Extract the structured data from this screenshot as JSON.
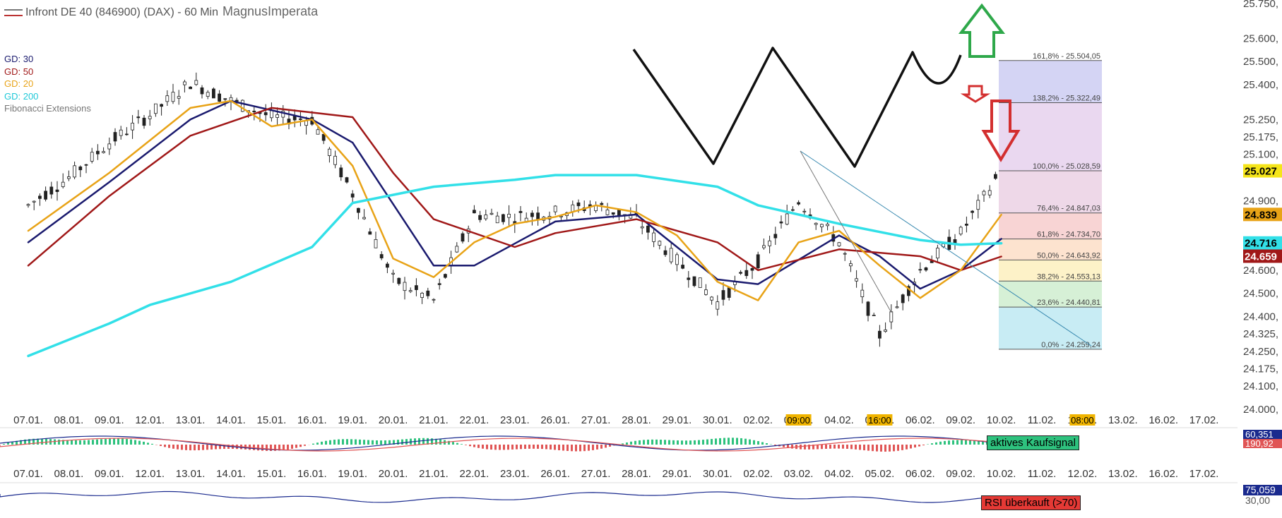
{
  "header": {
    "title": "Infront DE 40 (846900) (DAX) - 60 Min",
    "author": "MagnusImperata"
  },
  "legend": {
    "ma": [
      {
        "label": "GD: 30",
        "color": "#1a1a6e"
      },
      {
        "label": "GD: 50",
        "color": "#a01818"
      },
      {
        "label": "GD: 20",
        "color": "#e8a317"
      },
      {
        "label": "GD: 200",
        "color": "#32e0e8"
      }
    ],
    "fib_name": "Fibonacci Extensions"
  },
  "chart_data": {
    "type": "line",
    "title": "Infront DE 40 (846900) (DAX) - 60 Min",
    "ylim": [
      24000,
      25750
    ],
    "y_ticks": [
      "24.000,",
      "24.100,",
      "24.175,",
      "24.250,",
      "24.325,",
      "24.400,",
      "24.500,",
      "24.600,",
      "24.900,",
      "25.100,",
      "25.175,",
      "25.250,",
      "25.400,",
      "25.500,",
      "25.600,",
      "25.750,"
    ],
    "x_ticks": [
      "07.01.",
      "08.01.",
      "09.01.",
      "12.01.",
      "13.01.",
      "14.01.",
      "15.01.",
      "16.01.",
      "19.01.",
      "20.01.",
      "21.01.",
      "22.01.",
      "23.01.",
      "26.01.",
      "27.01.",
      "28.01.",
      "29.01.",
      "30.01.",
      "02.02.",
      "03.02.",
      "04.02.",
      "05.02.",
      "06.02.",
      "09.02.",
      "10.02.",
      "11.02.",
      "12.02.",
      "13.02.",
      "16.02.",
      "17.02."
    ],
    "time_badges": [
      "09:00",
      "16:00",
      "08:00"
    ],
    "price_series": [
      {
        "x": "07.01.",
        "y": 24880
      },
      {
        "x": "08.01.",
        "y": 25000
      },
      {
        "x": "09.01.",
        "y": 25150
      },
      {
        "x": "12.01.",
        "y": 25270
      },
      {
        "x": "13.01.",
        "y": 25410
      },
      {
        "x": "14.01.",
        "y": 25330
      },
      {
        "x": "15.01.",
        "y": 25260
      },
      {
        "x": "16.01.",
        "y": 25250
      },
      {
        "x": "19.01.",
        "y": 24930
      },
      {
        "x": "20.01.",
        "y": 24560
      },
      {
        "x": "21.01.",
        "y": 24470
      },
      {
        "x": "22.01.",
        "y": 24840
      },
      {
        "x": "23.01.",
        "y": 24830
      },
      {
        "x": "26.01.",
        "y": 24850
      },
      {
        "x": "27.01.",
        "y": 24880
      },
      {
        "x": "28.01.",
        "y": 24820
      },
      {
        "x": "29.01.",
        "y": 24640
      },
      {
        "x": "30.01.",
        "y": 24460
      },
      {
        "x": "02.02.",
        "y": 24640
      },
      {
        "x": "03.02.",
        "y": 24900
      },
      {
        "x": "04.02.",
        "y": 24720
      },
      {
        "x": "05.02.",
        "y": 24320
      },
      {
        "x": "06.02.",
        "y": 24600
      },
      {
        "x": "09.02.",
        "y": 24760
      },
      {
        "x": "10.02.",
        "y": 25030
      }
    ],
    "series": [
      {
        "name": "GD: 30",
        "color": "#1a1a6e",
        "values": [
          {
            "x": "07.01.",
            "y": 24720
          },
          {
            "x": "09.01.",
            "y": 24980
          },
          {
            "x": "13.01.",
            "y": 25250
          },
          {
            "x": "14.01.",
            "y": 25330
          },
          {
            "x": "16.01.",
            "y": 25250
          },
          {
            "x": "19.01.",
            "y": 25150
          },
          {
            "x": "21.01.",
            "y": 24620
          },
          {
            "x": "22.01.",
            "y": 24620
          },
          {
            "x": "26.01.",
            "y": 24810
          },
          {
            "x": "28.01.",
            "y": 24840
          },
          {
            "x": "30.01.",
            "y": 24560
          },
          {
            "x": "02.02.",
            "y": 24540
          },
          {
            "x": "04.02.",
            "y": 24750
          },
          {
            "x": "05.02.",
            "y": 24660
          },
          {
            "x": "06.02.",
            "y": 24520
          },
          {
            "x": "09.02.",
            "y": 24600
          },
          {
            "x": "10.02.",
            "y": 24735
          }
        ]
      },
      {
        "name": "GD: 50",
        "color": "#a01818",
        "values": [
          {
            "x": "07.01.",
            "y": 24620
          },
          {
            "x": "09.01.",
            "y": 24920
          },
          {
            "x": "13.01.",
            "y": 25180
          },
          {
            "x": "15.01.",
            "y": 25300
          },
          {
            "x": "19.01.",
            "y": 25260
          },
          {
            "x": "20.01.",
            "y": 25020
          },
          {
            "x": "21.01.",
            "y": 24820
          },
          {
            "x": "23.01.",
            "y": 24700
          },
          {
            "x": "26.01.",
            "y": 24760
          },
          {
            "x": "28.01.",
            "y": 24820
          },
          {
            "x": "30.01.",
            "y": 24720
          },
          {
            "x": "02.02.",
            "y": 24600
          },
          {
            "x": "04.02.",
            "y": 24690
          },
          {
            "x": "06.02.",
            "y": 24660
          },
          {
            "x": "09.02.",
            "y": 24600
          },
          {
            "x": "10.02.",
            "y": 24659
          }
        ]
      },
      {
        "name": "GD: 20",
        "color": "#e8a317",
        "values": [
          {
            "x": "07.01.",
            "y": 24770
          },
          {
            "x": "09.01.",
            "y": 25020
          },
          {
            "x": "13.01.",
            "y": 25300
          },
          {
            "x": "14.01.",
            "y": 25330
          },
          {
            "x": "15.01.",
            "y": 25220
          },
          {
            "x": "16.01.",
            "y": 25250
          },
          {
            "x": "19.01.",
            "y": 25050
          },
          {
            "x": "20.01.",
            "y": 24650
          },
          {
            "x": "21.01.",
            "y": 24570
          },
          {
            "x": "22.01.",
            "y": 24720
          },
          {
            "x": "23.01.",
            "y": 24800
          },
          {
            "x": "26.01.",
            "y": 24830
          },
          {
            "x": "27.01.",
            "y": 24880
          },
          {
            "x": "28.01.",
            "y": 24850
          },
          {
            "x": "29.01.",
            "y": 24750
          },
          {
            "x": "30.01.",
            "y": 24550
          },
          {
            "x": "02.02.",
            "y": 24470
          },
          {
            "x": "03.02.",
            "y": 24720
          },
          {
            "x": "04.02.",
            "y": 24770
          },
          {
            "x": "05.02.",
            "y": 24620
          },
          {
            "x": "06.02.",
            "y": 24480
          },
          {
            "x": "09.02.",
            "y": 24600
          },
          {
            "x": "10.02.",
            "y": 24839
          }
        ]
      },
      {
        "name": "GD: 200",
        "color": "#32e0e8",
        "values": [
          {
            "x": "07.01.",
            "y": 24230
          },
          {
            "x": "09.01.",
            "y": 24370
          },
          {
            "x": "12.01.",
            "y": 24450
          },
          {
            "x": "14.01.",
            "y": 24550
          },
          {
            "x": "16.01.",
            "y": 24700
          },
          {
            "x": "19.01.",
            "y": 24890
          },
          {
            "x": "21.01.",
            "y": 24960
          },
          {
            "x": "23.01.",
            "y": 24990
          },
          {
            "x": "26.01.",
            "y": 25010
          },
          {
            "x": "28.01.",
            "y": 25010
          },
          {
            "x": "30.01.",
            "y": 24960
          },
          {
            "x": "02.02.",
            "y": 24880
          },
          {
            "x": "04.02.",
            "y": 24800
          },
          {
            "x": "06.02.",
            "y": 24730
          },
          {
            "x": "09.02.",
            "y": 24710
          },
          {
            "x": "10.02.",
            "y": 24716
          }
        ]
      }
    ],
    "fibonacci_levels": [
      {
        "label": "161,8% - 25.504,05",
        "value": 25504.05,
        "fill": "#d4d4f4"
      },
      {
        "label": "138,2% - 25.322,49",
        "value": 25322.49,
        "fill": "#ead8f0"
      },
      {
        "label": "100,0% - 25.028,59",
        "value": 25028.59,
        "fill": "#eed8e8"
      },
      {
        "label": "76,4% - 24.847,03",
        "value": 24847.03,
        "fill": "#f8d4d4"
      },
      {
        "label": "61,8% - 24.734,70",
        "value": 24734.7,
        "fill": "#fde3cf"
      },
      {
        "label": "50,0% - 24.643,92",
        "value": 24643.92,
        "fill": "#fdf2c8"
      },
      {
        "label": "38,2% - 24.553,13",
        "value": 24553.13,
        "fill": "#d6f0d6"
      },
      {
        "label": "23,6% - 24.440,81",
        "value": 24440.81,
        "fill": "#c8ecf4"
      },
      {
        "label": "0,0% - 24.259,24",
        "value": 24259.24,
        "fill": null
      }
    ],
    "price_labels": [
      {
        "text": "25.027",
        "value": 25027,
        "color": "#f5e51a",
        "text_color": "#000"
      },
      {
        "text": "24.839",
        "value": 24839,
        "color": "#e8a317",
        "text_color": "#000"
      },
      {
        "text": "24.716",
        "value": 24716,
        "color": "#32e0e8",
        "text_color": "#000"
      },
      {
        "text": "24.659",
        "value": 24659,
        "color": "#a01818",
        "text_color": "#fff"
      }
    ],
    "macd_labels": [
      "60,351",
      "190,92"
    ],
    "rsi_labels": [
      "75,059",
      "30,00"
    ]
  },
  "badges": {
    "macd": "aktives Kaufsignal",
    "rsi": "RSI überkauft (>70)"
  }
}
